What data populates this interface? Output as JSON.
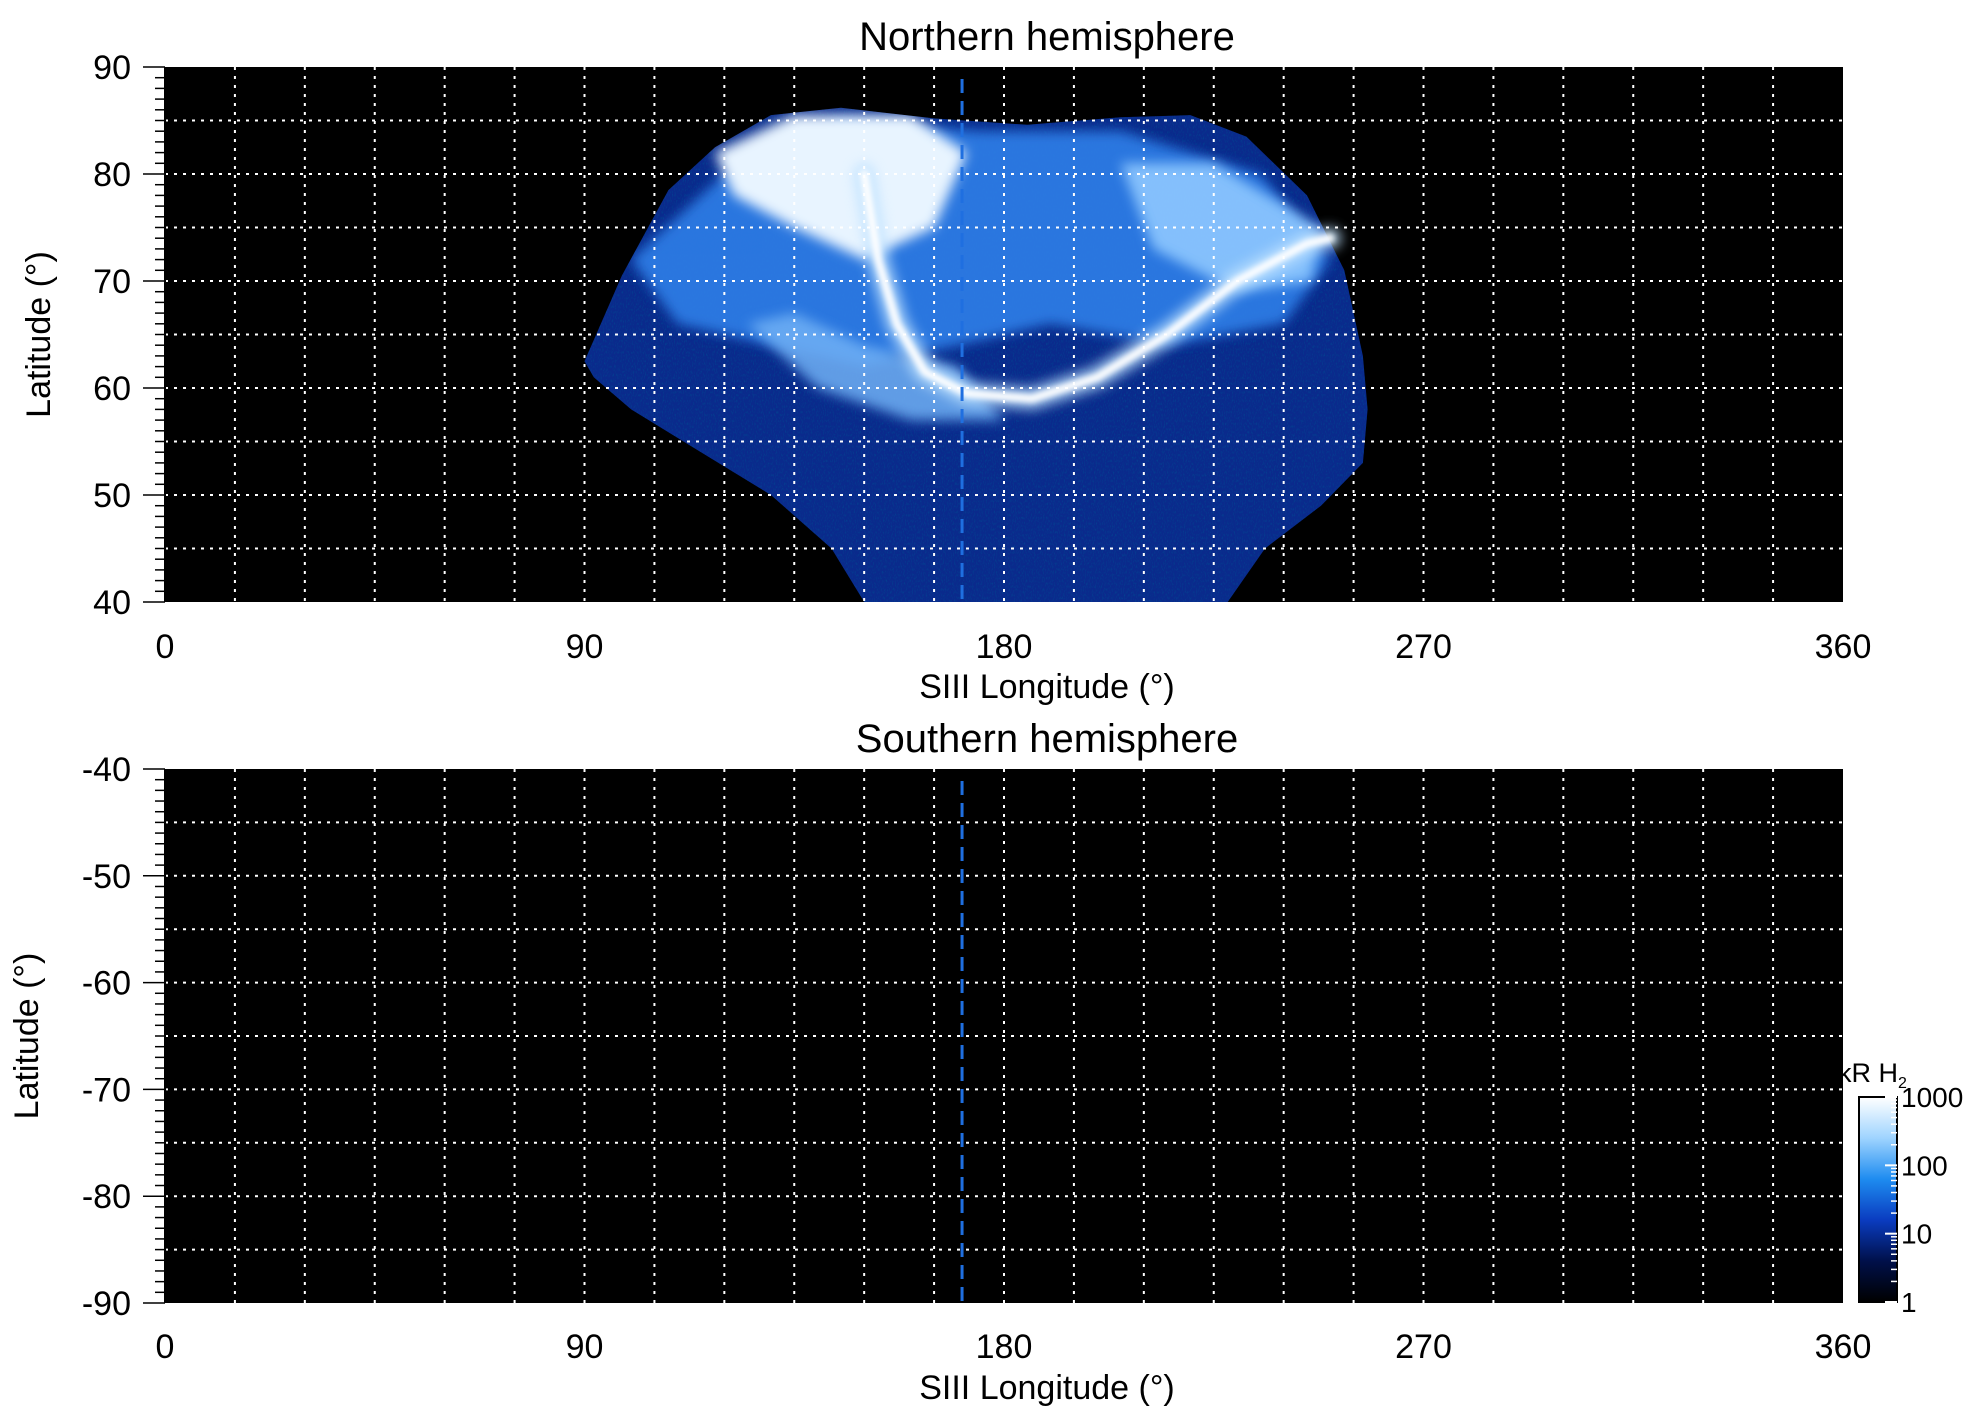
{
  "chart_data": [
    {
      "type": "heatmap",
      "title": "Northern hemisphere",
      "xlabel": "SIII Longitude (°)",
      "ylabel": "Latitude (°)",
      "xlim": [
        0,
        360
      ],
      "ylim": [
        40,
        90
      ],
      "xticks": [
        "0",
        "90",
        "180",
        "270",
        "360"
      ],
      "yticks": [
        "40",
        "50",
        "60",
        "70",
        "80",
        "90"
      ],
      "grid": true,
      "background": "#000000",
      "reference_longitude": 171,
      "reference_line_color": "#1f6fe0",
      "emission": {
        "region_longitude_range": [
          90,
          257
        ],
        "region_latitude_range": [
          40,
          86
        ],
        "main_oval": [
          {
            "lon": 150,
            "lat": 80
          },
          {
            "lon": 153,
            "lat": 72
          },
          {
            "lon": 157,
            "lat": 66
          },
          {
            "lon": 163,
            "lat": 61.5
          },
          {
            "lon": 172,
            "lat": 59.5
          },
          {
            "lon": 186,
            "lat": 59
          },
          {
            "lon": 200,
            "lat": 61
          },
          {
            "lon": 215,
            "lat": 65
          },
          {
            "lon": 230,
            "lat": 70
          },
          {
            "lon": 245,
            "lat": 73.5
          },
          {
            "lon": 250,
            "lat": 74
          }
        ]
      }
    },
    {
      "type": "heatmap",
      "title": "Southern hemisphere",
      "xlabel": "SIII Longitude (°)",
      "ylabel": "Latitude (°)",
      "xlim": [
        0,
        360
      ],
      "ylim": [
        -90,
        -40
      ],
      "xticks": [
        "0",
        "90",
        "180",
        "270",
        "360"
      ],
      "yticks": [
        "-40",
        "-50",
        "-60",
        "-70",
        "-80",
        "-90"
      ],
      "grid": true,
      "background": "#000000",
      "reference_longitude": 171,
      "reference_line_color": "#1f6fe0"
    }
  ],
  "colorbar": {
    "title_main": "kR H",
    "title_sub": "2",
    "scale": "log",
    "range": [
      1,
      1000
    ],
    "tick_labels": [
      "1000",
      "100",
      "10",
      "1"
    ],
    "tick_values": [
      1000,
      100,
      10,
      1
    ],
    "colors": [
      "#000000",
      "#00104a",
      "#0a3cc0",
      "#1e8cf0",
      "#9fd4ff",
      "#ffffff"
    ]
  }
}
